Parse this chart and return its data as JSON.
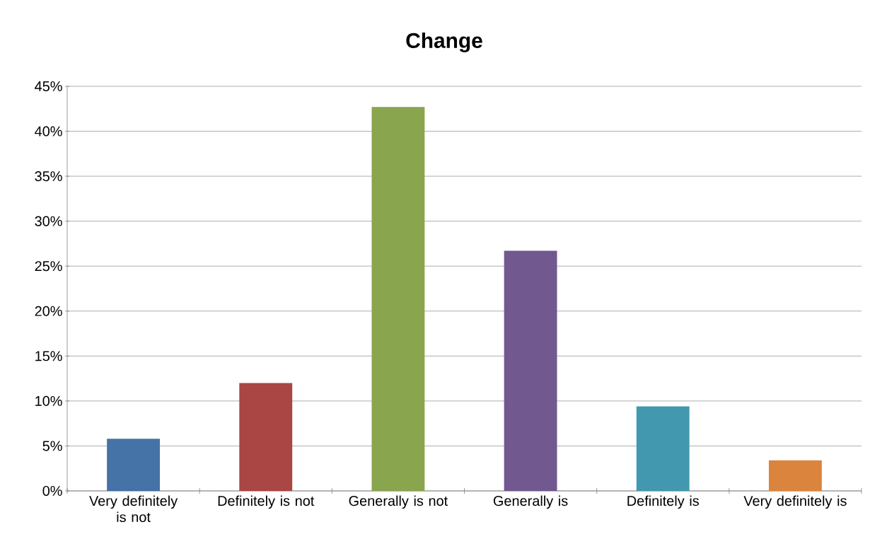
{
  "chart_data": {
    "type": "bar",
    "title": "Change",
    "categories": [
      "Very definitely is not",
      "Definitely is not",
      "Generally is not",
      "Generally is",
      "Definitely is",
      "Very definitely is"
    ],
    "values": [
      5.8,
      12.0,
      42.7,
      26.7,
      9.4,
      3.4
    ],
    "colors": [
      "#4572a7",
      "#aa4643",
      "#89a54e",
      "#71588f",
      "#4198af",
      "#db843d"
    ],
    "ylim": [
      0,
      45
    ],
    "yticks": [
      {
        "value": 0,
        "label": "0%"
      },
      {
        "value": 5,
        "label": "5%"
      },
      {
        "value": 10,
        "label": "10%"
      },
      {
        "value": 15,
        "label": "15%"
      },
      {
        "value": 20,
        "label": "20%"
      },
      {
        "value": 25,
        "label": "25%"
      },
      {
        "value": 30,
        "label": "30%"
      },
      {
        "value": 35,
        "label": "35%"
      },
      {
        "value": 40,
        "label": "40%"
      },
      {
        "value": 45,
        "label": "45%"
      }
    ],
    "grid": "y"
  }
}
